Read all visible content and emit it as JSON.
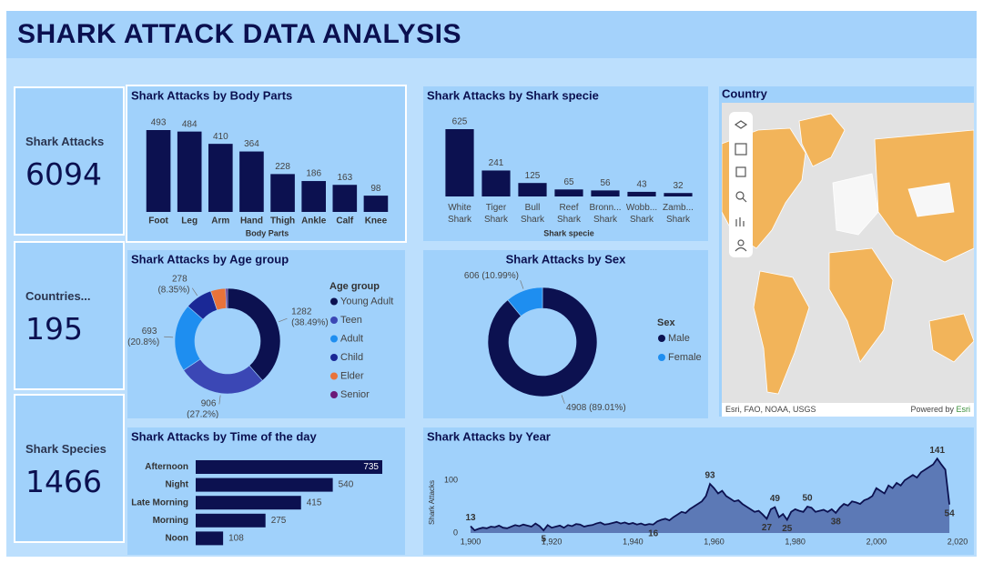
{
  "header": {
    "title": "SHARK ATTACK DATA ANALYSIS"
  },
  "cards": [
    {
      "label": "Shark Attacks",
      "value": 6094
    },
    {
      "label": "Countries...",
      "value": 195
    },
    {
      "label": "Shark Species",
      "value": 1466
    }
  ],
  "map": {
    "title": "Country",
    "attribution": "Esri, FAO, NOAA, USGS",
    "powered_by": "Powered by",
    "esri": "Esri"
  },
  "chart_data": [
    {
      "type": "bar",
      "title": "Shark Attacks by Body Parts",
      "x_label": "Body Parts",
      "categories": [
        "Foot",
        "Leg",
        "Arm",
        "Hand",
        "Thigh",
        "Ankle",
        "Calf",
        "Knee"
      ],
      "values": [
        493,
        484,
        410,
        364,
        228,
        186,
        163,
        98
      ],
      "color": "#0c1150"
    },
    {
      "type": "bar",
      "title": "Shark Attacks by Shark specie",
      "x_label": "Shark specie",
      "categories": [
        "White Shark",
        "Tiger Shark",
        "Bull Shark",
        "Reef Shark",
        "Bronn... Shark",
        "Wobb... Shark",
        "Zamb... Shark"
      ],
      "values": [
        625,
        241,
        125,
        65,
        56,
        43,
        32
      ],
      "color": "#0c1150"
    },
    {
      "type": "donut",
      "title": "Shark Attacks by Age group",
      "legend_title": "Age group",
      "categories": [
        "Young Adult",
        "Teen",
        "Adult",
        "Child",
        "Elder",
        "Senior"
      ],
      "values": [
        1282,
        906,
        693,
        278,
        153,
        19
      ],
      "value_labels": [
        "1282 (38.49%)",
        "906 (27.2%)",
        "693 (20.8%)",
        "278 (8.35%)",
        null,
        null
      ],
      "colors": [
        "#0c1150",
        "#3b47b5",
        "#1e8ef0",
        "#1a2896",
        "#e8733a",
        "#6b1a78"
      ]
    },
    {
      "type": "barh",
      "title": "Shark Attacks by Time of the day",
      "categories": [
        "Afternoon",
        "Night",
        "Late Morning",
        "Morning",
        "Noon"
      ],
      "values": [
        735,
        540,
        415,
        275,
        108
      ],
      "color": "#0c1150"
    },
    {
      "type": "donut",
      "title": "Shark Attacks by Sex",
      "legend_title": "Sex",
      "categories": [
        "Male",
        "Female"
      ],
      "values": [
        4908,
        606
      ],
      "value_labels": [
        "4908 (89.01%)",
        "606 (10.99%)"
      ],
      "colors": [
        "#0c1150",
        "#1e8ef0"
      ]
    },
    {
      "type": "line",
      "title": "Shark Attacks by Year",
      "y_label": "Shark Attacks",
      "x": [
        1900,
        1901,
        1902,
        1903,
        1904,
        1905,
        1906,
        1907,
        1908,
        1909,
        1910,
        1911,
        1912,
        1913,
        1914,
        1915,
        1916,
        1917,
        1918,
        1919,
        1920,
        1921,
        1922,
        1923,
        1924,
        1925,
        1926,
        1927,
        1928,
        1929,
        1930,
        1931,
        1932,
        1933,
        1934,
        1935,
        1936,
        1937,
        1938,
        1939,
        1940,
        1941,
        1942,
        1943,
        1944,
        1945,
        1946,
        1947,
        1948,
        1949,
        1950,
        1951,
        1952,
        1953,
        1954,
        1955,
        1956,
        1957,
        1958,
        1959,
        1960,
        1961,
        1962,
        1963,
        1964,
        1965,
        1966,
        1967,
        1968,
        1969,
        1970,
        1971,
        1972,
        1973,
        1974,
        1975,
        1976,
        1977,
        1978,
        1979,
        1980,
        1981,
        1982,
        1983,
        1984,
        1985,
        1986,
        1987,
        1988,
        1989,
        1990,
        1991,
        1992,
        1993,
        1994,
        1995,
        1996,
        1997,
        1998,
        1999,
        2000,
        2001,
        2002,
        2003,
        2004,
        2005,
        2006,
        2007,
        2008,
        2009,
        2010,
        2011,
        2012,
        2013,
        2014,
        2015,
        2016,
        2017,
        2018
      ],
      "values": [
        13,
        5,
        8,
        10,
        9,
        12,
        11,
        14,
        10,
        9,
        12,
        15,
        13,
        16,
        14,
        12,
        18,
        13,
        5,
        15,
        10,
        12,
        14,
        10,
        15,
        13,
        17,
        16,
        12,
        14,
        15,
        18,
        20,
        16,
        17,
        19,
        21,
        18,
        20,
        17,
        19,
        16,
        18,
        15,
        17,
        16,
        22,
        25,
        27,
        24,
        30,
        35,
        40,
        38,
        45,
        50,
        55,
        60,
        70,
        93,
        85,
        75,
        80,
        70,
        65,
        60,
        62,
        55,
        50,
        45,
        40,
        42,
        35,
        27,
        45,
        49,
        30,
        36,
        25,
        40,
        45,
        42,
        40,
        50,
        48,
        40,
        42,
        44,
        40,
        45,
        38,
        48,
        55,
        52,
        60,
        58,
        55,
        62,
        65,
        70,
        85,
        80,
        75,
        90,
        85,
        95,
        90,
        100,
        105,
        110,
        105,
        115,
        120,
        125,
        130,
        141,
        130,
        120,
        54
      ],
      "value_labels": [
        "13",
        null,
        null,
        null,
        null,
        null,
        null,
        null,
        null,
        null,
        null,
        null,
        null,
        null,
        null,
        null,
        null,
        null,
        "5",
        null,
        null,
        null,
        null,
        null,
        null,
        null,
        null,
        null,
        null,
        null,
        null,
        null,
        null,
        null,
        null,
        null,
        null,
        null,
        null,
        null,
        null,
        null,
        null,
        null,
        null,
        "16",
        null,
        null,
        null,
        null,
        null,
        null,
        null,
        null,
        null,
        null,
        null,
        null,
        null,
        "93",
        null,
        null,
        null,
        null,
        null,
        null,
        null,
        null,
        null,
        null,
        null,
        null,
        null,
        "27",
        null,
        "49",
        null,
        null,
        "25",
        null,
        null,
        null,
        null,
        "50",
        null,
        null,
        null,
        null,
        null,
        null,
        "38",
        null,
        null,
        null,
        null,
        null,
        null,
        null,
        null,
        null,
        null,
        null,
        null,
        null,
        null,
        null,
        null,
        null,
        null,
        null,
        null,
        null,
        null,
        null,
        null,
        "141",
        null,
        null,
        "54"
      ],
      "xlim": [
        1900,
        2020
      ],
      "ylim": [
        0,
        150
      ],
      "xticks": [
        {
          "value": 1900,
          "label": "1,900"
        },
        {
          "value": 1920,
          "label": "1,920"
        },
        {
          "value": 1940,
          "label": "1,940"
        },
        {
          "value": 1960,
          "label": "1,960"
        },
        {
          "value": 1980,
          "label": "1,980"
        },
        {
          "value": 2000,
          "label": "2,000"
        },
        {
          "value": 2020,
          "label": "2,020"
        }
      ],
      "yticks": [
        0,
        100
      ],
      "color": "#0c1150",
      "fill": "#5c79b6"
    }
  ]
}
